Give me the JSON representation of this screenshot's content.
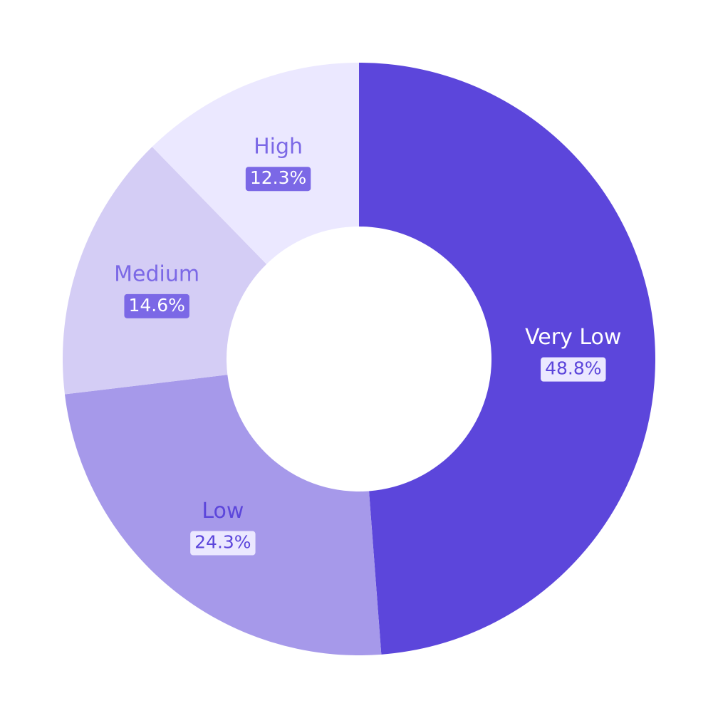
{
  "chart_data": {
    "type": "pie",
    "donut": true,
    "slices": [
      {
        "label": "Very Low",
        "value": 48.8,
        "value_label": "48.8%",
        "color": "#5c46db",
        "label_color": "#ffffff",
        "badge_color": "#ebe8ff",
        "badge_text_color": "#5c46db"
      },
      {
        "label": "Low",
        "value": 24.3,
        "value_label": "24.3%",
        "color": "#a699ea",
        "label_color": "#5c46db",
        "badge_color": "#ebe8ff",
        "badge_text_color": "#5c46db"
      },
      {
        "label": "Medium",
        "value": 14.6,
        "value_label": "14.6%",
        "color": "#d4cdf5",
        "label_color": "#7b68e6",
        "badge_color": "#7b68e6",
        "badge_text_color": "#ffffff"
      },
      {
        "label": "High",
        "value": 12.3,
        "value_label": "12.3%",
        "color": "#ebe8ff",
        "label_color": "#7b68e6",
        "badge_color": "#7b68e6",
        "badge_text_color": "#ffffff"
      }
    ],
    "start_angle_deg": 0,
    "direction": "clockwise"
  }
}
